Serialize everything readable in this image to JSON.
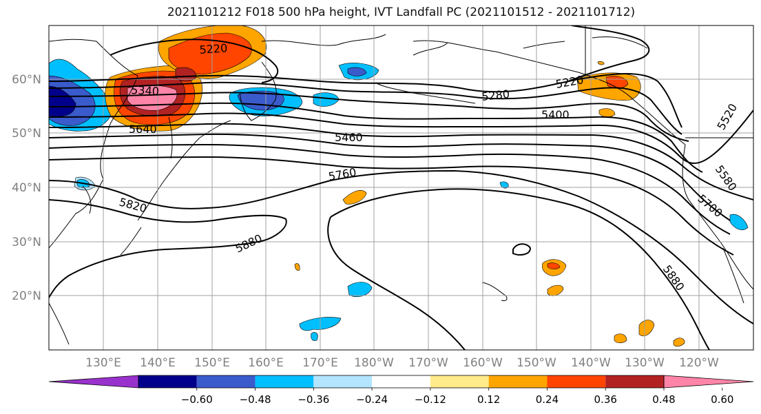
{
  "title": "2021101212 F018 500 hPa height, IVT Landfall PC (2021101512 - 2021101712)",
  "lat_ticks": [
    "20°N",
    "30°N",
    "40°N",
    "50°N",
    "60°N"
  ],
  "lon_ticks": [
    "130°E",
    "140°E",
    "150°E",
    "160°E",
    "170°E",
    "180°W",
    "170°W",
    "160°W",
    "150°W",
    "140°W",
    "130°W",
    "120°W"
  ],
  "contour_labels": {
    "c5220a": "5220",
    "c5220b": "5220",
    "c5280": "5280",
    "c5340": "5340",
    "c5400": "5400",
    "c5460": "5460",
    "c5520": "5520",
    "c5580": "5580",
    "c5640": "5640",
    "c5700": "5700",
    "c5760": "5760",
    "c5820": "5820",
    "c5880a": "5880",
    "c5880b": "5880"
  },
  "colorbar": {
    "colors": [
      "#9932cc",
      "#00008b",
      "#3a5bcc",
      "#00bfff",
      "#b3e5ff",
      "#ffffff",
      "#ffeb8a",
      "#ffa500",
      "#ff4500",
      "#b22222",
      "#ff85a8"
    ],
    "labels": [
      "−0.60",
      "−0.48",
      "−0.36",
      "−0.24",
      "−0.12",
      "0.12",
      "0.24",
      "0.36",
      "0.48",
      "0.60"
    ]
  },
  "colors": {
    "axis_text": "#808080",
    "grid": "#a0a0a0",
    "contour": "#000000"
  }
}
